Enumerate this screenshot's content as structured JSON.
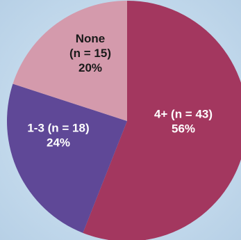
{
  "chart_data": {
    "type": "pie",
    "title": "",
    "slices": [
      {
        "label": "4+ (n = 43)",
        "n": 43,
        "value": 56,
        "value_label": "56%",
        "color": "#a3375f",
        "text_color": "#ffffff",
        "label_lines": [
          "4+ (n = 43)",
          "56%"
        ]
      },
      {
        "label": "1-3 (n = 18)",
        "n": 18,
        "value": 24,
        "value_label": "24%",
        "color": "#5f4897",
        "text_color": "#ffffff",
        "label_lines": [
          "1-3 (n = 18)",
          "24%"
        ]
      },
      {
        "label": "None (n = 15)",
        "n": 15,
        "value": 20,
        "value_label": "20%",
        "color": "#d49aac",
        "text_color": "#1a1a1a",
        "label_lines": [
          "None",
          "(n = 15)",
          "20%"
        ]
      }
    ],
    "start": "12 o'clock",
    "direction": "clockwise"
  }
}
